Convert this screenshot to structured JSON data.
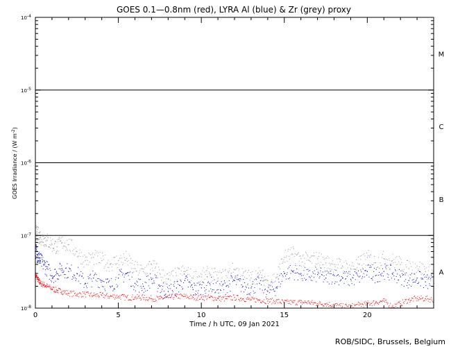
{
  "chart_data": {
    "type": "scatter",
    "title": "GOES 0.1—0.8nm (red), LYRA Al (blue) & Zr (grey) proxy",
    "xlabel": "Time / h UTC, 09 Jan 2021",
    "ylabel": "GOES Irradiance / (W m",
    "ylabel_exp": "-2",
    "ylabel_close": ")",
    "credit": "ROB/SIDC, Brussels, Belgium",
    "x_range": [
      0,
      24
    ],
    "y_range": [
      1e-08,
      0.0001
    ],
    "y_scale": "log",
    "x_ticks": [
      {
        "value": 0,
        "label": "0"
      },
      {
        "value": 5,
        "label": "5"
      },
      {
        "value": 10,
        "label": "10"
      },
      {
        "value": 15,
        "label": "15"
      },
      {
        "value": 20,
        "label": "20"
      }
    ],
    "y_ticks": [
      {
        "value": 1e-08,
        "base": "10",
        "exp": "-8"
      },
      {
        "value": 1e-07,
        "base": "10",
        "exp": "-7"
      },
      {
        "value": 1e-06,
        "base": "10",
        "exp": "-6"
      },
      {
        "value": 1e-05,
        "base": "10",
        "exp": "-5"
      },
      {
        "value": 0.0001,
        "base": "10",
        "exp": "-4"
      }
    ],
    "flare_lines": [
      1e-07,
      1e-06,
      1e-05
    ],
    "flare_classes": [
      {
        "label": "A",
        "value": 3.162e-08
      },
      {
        "label": "B",
        "value": 3.162e-07
      },
      {
        "label": "C",
        "value": 3.162e-06
      },
      {
        "label": "M",
        "value": 3.162e-05
      }
    ],
    "series": [
      {
        "color": "#ff0000",
        "x": [
          0.0,
          0.1,
          0.2,
          0.3,
          0.5,
          0.7,
          1.0,
          1.3,
          1.6,
          2.0,
          2.5,
          3.0,
          3.5,
          4.0,
          4.5,
          5.0,
          5.5,
          6.0,
          6.5,
          7.0,
          7.5,
          8.0,
          8.5,
          9.0,
          9.5,
          10.0,
          10.5,
          11.0,
          11.5,
          12.0,
          12.5,
          13.0,
          13.5,
          14.0,
          14.5,
          15.0,
          15.5,
          16.0,
          16.5,
          17.0,
          17.5,
          18.0,
          18.5,
          19.0,
          19.5,
          20.0,
          20.5,
          21.0,
          21.5,
          22.0,
          22.5,
          23.0,
          23.5,
          24.0
        ],
        "y": [
          2.9e-08,
          2.6e-08,
          2.4e-08,
          2.2e-08,
          2.1e-08,
          2e-08,
          1.85e-08,
          1.75e-08,
          1.7e-08,
          1.6e-08,
          1.55e-08,
          1.55e-08,
          1.5e-08,
          1.5e-08,
          1.45e-08,
          1.45e-08,
          1.4e-08,
          1.4e-08,
          1.4e-08,
          1.35e-08,
          1.35e-08,
          1.4e-08,
          1.45e-08,
          1.45e-08,
          1.4e-08,
          1.4e-08,
          1.4e-08,
          1.35e-08,
          1.35e-08,
          1.4e-08,
          1.35e-08,
          1.3e-08,
          1.3e-08,
          1.25e-08,
          1.25e-08,
          1.2e-08,
          1.2e-08,
          1.2e-08,
          1.2e-08,
          1.15e-08,
          1.15e-08,
          1.1e-08,
          1.05e-08,
          1.05e-08,
          1.1e-08,
          1.15e-08,
          1.2e-08,
          1.25e-08,
          1.05e-08,
          1.15e-08,
          1.3e-08,
          1.35e-08,
          1.35e-08,
          1.3e-08
        ]
      },
      {
        "color": "#0000cc",
        "x": [
          0.0,
          0.1,
          0.2,
          0.3,
          0.5,
          0.7,
          1.0,
          1.3,
          1.6,
          2.0,
          2.5,
          3.0,
          3.5,
          4.0,
          4.5,
          5.0,
          5.5,
          6.0,
          6.5,
          7.0,
          7.5,
          8.0,
          8.5,
          9.0,
          9.5,
          10.0,
          10.5,
          11.0,
          11.5,
          12.0,
          12.5,
          13.0,
          13.5,
          14.0,
          14.5,
          15.0,
          15.5,
          16.0,
          16.5,
          17.0,
          17.5,
          18.0,
          18.5,
          19.0,
          19.5,
          20.0,
          20.5,
          21.0,
          21.5,
          22.0,
          22.5,
          23.0,
          23.5,
          24.0
        ],
        "y": [
          6.5e-08,
          5.5e-08,
          5e-08,
          4.5e-08,
          4e-08,
          3.5e-08,
          2.8e-08,
          3e-08,
          3.5e-08,
          3.2e-08,
          3e-08,
          2.2e-08,
          2.6e-08,
          2.4e-08,
          2e-08,
          2.6e-08,
          3e-08,
          2.2e-08,
          2e-08,
          2.5e-08,
          2e-08,
          1.7e-08,
          1.9e-08,
          2.4e-08,
          1.8e-08,
          1.9e-08,
          2.2e-08,
          1.8e-08,
          2e-08,
          2.4e-08,
          2e-08,
          1.9e-08,
          2.2e-08,
          1.7e-08,
          1.9e-08,
          3e-08,
          3.2e-08,
          3e-08,
          2.7e-08,
          2.9e-08,
          2.6e-08,
          2.8e-08,
          2.6e-08,
          2.5e-08,
          2.7e-08,
          3.2e-08,
          2.8e-08,
          3.2e-08,
          3e-08,
          2.7e-08,
          2.4e-08,
          2.6e-08,
          2.3e-08,
          2.2e-08
        ]
      },
      {
        "color": "#999999",
        "x": [
          0.0,
          0.1,
          0.2,
          0.3,
          0.5,
          0.7,
          1.0,
          1.3,
          1.6,
          2.0,
          2.5,
          3.0,
          3.5,
          4.0,
          4.5,
          5.0,
          5.5,
          6.0,
          6.5,
          7.0,
          7.5,
          8.0,
          8.5,
          9.0,
          9.5,
          10.0,
          10.5,
          11.0,
          11.5,
          12.0,
          12.5,
          13.0,
          13.5,
          14.0,
          14.5,
          15.0,
          15.5,
          16.0,
          16.5,
          17.0,
          17.5,
          18.0,
          18.5,
          19.0,
          19.5,
          20.0,
          20.5,
          21.0,
          21.5,
          22.0,
          22.5,
          23.0,
          23.5,
          24.0
        ],
        "y": [
          1.1e-07,
          1.05e-07,
          1e-07,
          9.5e-08,
          9e-08,
          8.5e-08,
          7.5e-08,
          7e-08,
          8e-08,
          7.5e-08,
          6e-08,
          4.5e-08,
          5e-08,
          4.5e-08,
          4e-08,
          4.5e-08,
          4.8e-08,
          3.5e-08,
          3.2e-08,
          4e-08,
          3e-08,
          2.5e-08,
          2.8e-08,
          3.2e-08,
          2.6e-08,
          2.7e-08,
          3e-08,
          2.6e-08,
          2.8e-08,
          3.4e-08,
          2.8e-08,
          2.6e-08,
          2.9e-08,
          2.4e-08,
          2.6e-08,
          5e-08,
          5.5e-08,
          4.8e-08,
          4.5e-08,
          4.8e-08,
          4.2e-08,
          4e-08,
          3.8e-08,
          3.5e-08,
          4e-08,
          5e-08,
          4.2e-08,
          4.8e-08,
          4.5e-08,
          4e-08,
          3.5e-08,
          3.8e-08,
          3.2e-08,
          3e-08
        ]
      }
    ]
  }
}
